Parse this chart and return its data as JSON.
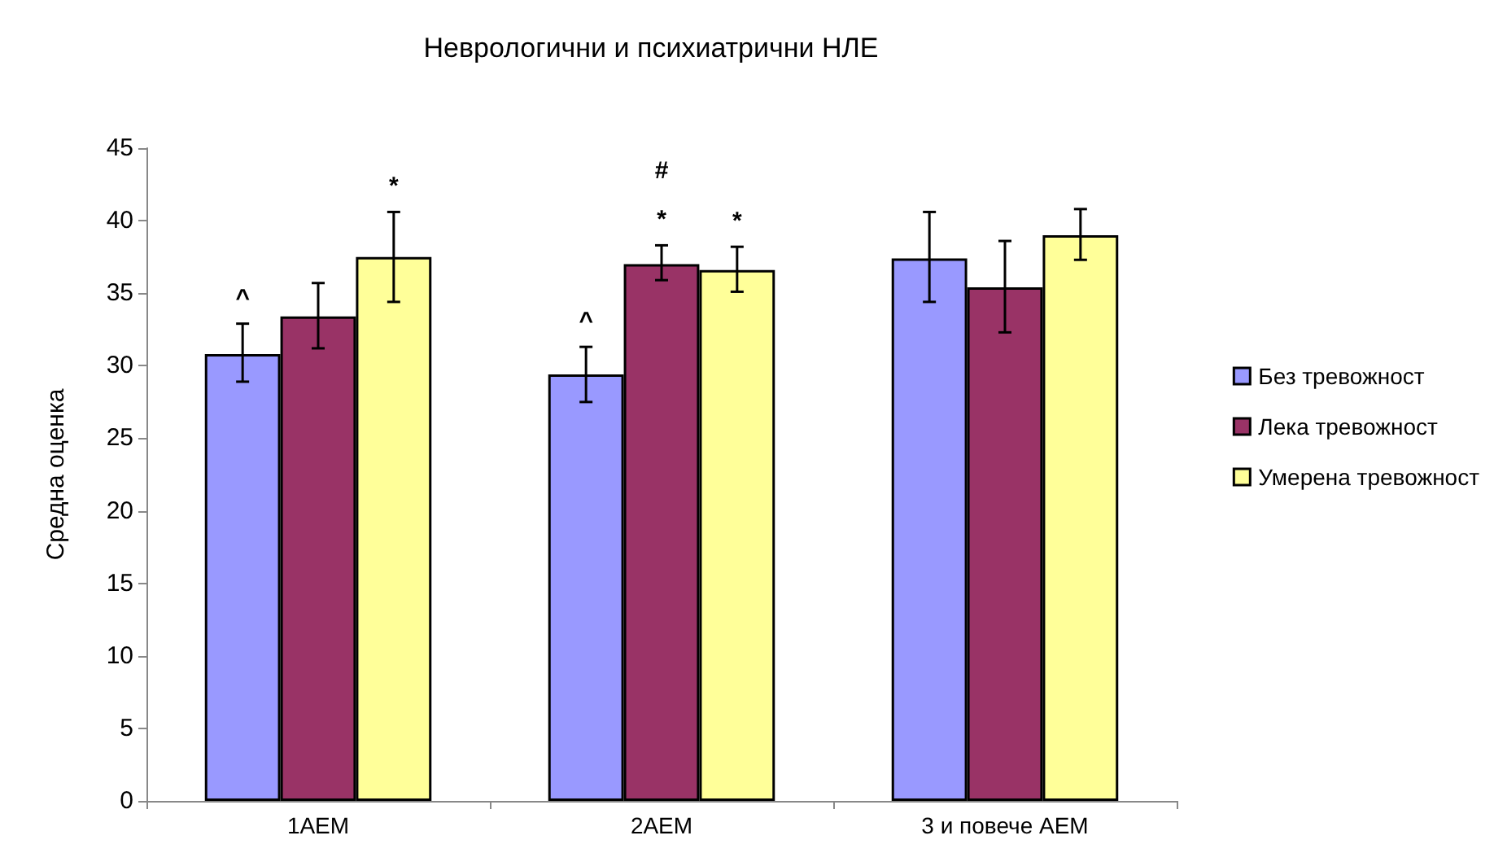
{
  "chart_data": {
    "type": "bar",
    "title": "Неврологични и психиатрични НЛЕ",
    "ylabel": "Средна оценка",
    "categories": [
      "1AEM",
      "2AEM",
      "3 и повече AEM"
    ],
    "series": [
      {
        "name": "Без тревожност",
        "color": "#9999ff",
        "values": [
          30.8,
          29.4,
          37.4
        ],
        "errors": [
          [
            28.9,
            32.9
          ],
          [
            27.5,
            31.3
          ],
          [
            34.4,
            40.6
          ]
        ],
        "value_labels": [
          "^",
          "^",
          null
        ]
      },
      {
        "name": "Лека тревожност",
        "color": "#993366",
        "values": [
          33.4,
          37.0,
          35.4
        ],
        "errors": [
          [
            31.2,
            35.7
          ],
          [
            35.9,
            38.3
          ],
          [
            32.3,
            38.6
          ]
        ],
        "value_labels": [
          null,
          "#\n\n*",
          null
        ]
      },
      {
        "name": "Умерена тревожност",
        "color": "#ffff99",
        "values": [
          37.5,
          36.6,
          39.0
        ],
        "errors": [
          [
            34.4,
            40.6
          ],
          [
            35.1,
            38.2
          ],
          [
            37.3,
            40.8
          ]
        ],
        "value_labels": [
          "*",
          "*",
          null
        ]
      }
    ],
    "ylim": [
      0,
      45
    ],
    "yticks": [
      0,
      5,
      10,
      15,
      20,
      25,
      30,
      35,
      40,
      45
    ],
    "grid": false,
    "legend": "right"
  }
}
